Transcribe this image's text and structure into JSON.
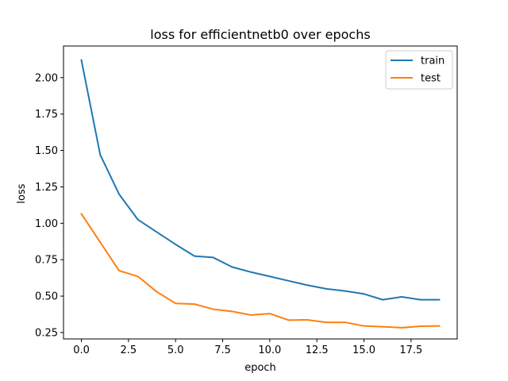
{
  "chart_data": {
    "type": "line",
    "title": "loss for efficientnetb0 over epochs",
    "xlabel": "epoch",
    "ylabel": "loss",
    "xlim": [
      -0.95,
      19.95
    ],
    "ylim": [
      0.206,
      2.217
    ],
    "xticks": [
      0.0,
      2.5,
      5.0,
      7.5,
      10.0,
      12.5,
      15.0,
      17.5
    ],
    "xtick_labels": [
      "0.0",
      "2.5",
      "5.0",
      "7.5",
      "10.0",
      "12.5",
      "15.0",
      "17.5"
    ],
    "yticks": [
      0.25,
      0.5,
      0.75,
      1.0,
      1.25,
      1.5,
      1.75,
      2.0
    ],
    "ytick_labels": [
      "0.25",
      "0.50",
      "0.75",
      "1.00",
      "1.25",
      "1.50",
      "1.75",
      "2.00"
    ],
    "grid": false,
    "legend_position": "top-right",
    "x": [
      0,
      1,
      2,
      3,
      4,
      5,
      6,
      7,
      8,
      9,
      10,
      11,
      12,
      13,
      14,
      15,
      16,
      17,
      18,
      19
    ],
    "series": [
      {
        "name": "train",
        "color": "#1f77b4",
        "values": [
          2.12,
          1.47,
          1.2,
          1.025,
          0.94,
          0.855,
          0.775,
          0.765,
          0.7,
          0.665,
          0.635,
          0.605,
          0.575,
          0.55,
          0.535,
          0.515,
          0.475,
          0.495,
          0.475,
          0.475
        ]
      },
      {
        "name": "test",
        "color": "#ff7f0e",
        "values": [
          1.065,
          0.87,
          0.675,
          0.635,
          0.53,
          0.45,
          0.445,
          0.41,
          0.395,
          0.37,
          0.38,
          0.335,
          0.337,
          0.32,
          0.32,
          0.295,
          0.29,
          0.283,
          0.293,
          0.295
        ]
      }
    ]
  }
}
